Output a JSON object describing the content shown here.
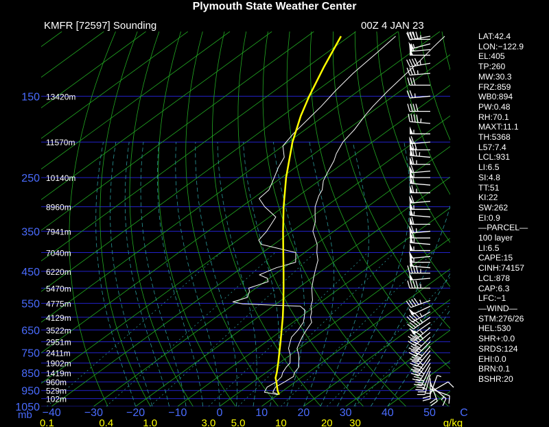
{
  "header": {
    "title": "Plymouth State Weather Center",
    "station": "KMFR [72597] Sounding",
    "datetime": "00Z  4 JAN 23"
  },
  "colors": {
    "background": "#000000",
    "isobar": "#2222cc",
    "isotherm": "#22aa22",
    "dry_adiabat": "#22aa22",
    "moist_adiabat": "#2a9a9a",
    "mixing_ratio": "#2a9a9a",
    "temperature": "#ffffff",
    "dewpoint": "#ffffff",
    "parcel": "#ffff00",
    "pressure_label": "#4a6cff",
    "text": "#ffffff"
  },
  "chart_data": {
    "type": "skew-t",
    "pressure_unit": "mb",
    "temperature_unit": "C",
    "mixing_ratio_unit": "g/kg",
    "pressure_labels": [
      {
        "p": 150,
        "label": "150",
        "height": "13420m"
      },
      {
        "p": 200,
        "label": "",
        "height": "11570m"
      },
      {
        "p": 250,
        "label": "250",
        "height": "10140m"
      },
      {
        "p": 300,
        "label": "",
        "height": "8960m"
      },
      {
        "p": 350,
        "label": "350",
        "height": "7941m"
      },
      {
        "p": 400,
        "label": "",
        "height": "7040m"
      },
      {
        "p": 450,
        "label": "450",
        "height": "6220m"
      },
      {
        "p": 500,
        "label": "",
        "height": "5470m"
      },
      {
        "p": 550,
        "label": "550",
        "height": "4775m"
      },
      {
        "p": 600,
        "label": "",
        "height": "4129m"
      },
      {
        "p": 650,
        "label": "650",
        "height": "3522m"
      },
      {
        "p": 700,
        "label": "",
        "height": "2951m"
      },
      {
        "p": 750,
        "label": "750",
        "height": "2411m"
      },
      {
        "p": 800,
        "label": "",
        "height": "1902m"
      },
      {
        "p": 850,
        "label": "850",
        "height": "1419m"
      },
      {
        "p": 900,
        "label": "",
        "height": "960m"
      },
      {
        "p": 950,
        "label": "950",
        "height": "529m"
      },
      {
        "p": 1000,
        "label": "",
        "height": "102m"
      },
      {
        "p": 1050,
        "label": "1050",
        "height": ""
      }
    ],
    "temperature_ticks": [
      -40,
      -30,
      -20,
      -10,
      0,
      10,
      20,
      30,
      40,
      50
    ],
    "mixing_ratio_ticks": [
      "0.1",
      "0.4",
      "1.0",
      "3.0",
      "5.0",
      "10",
      "20",
      "30"
    ],
    "pressure_range": [
      100,
      1050
    ],
    "temperature_profile": [
      {
        "p": 975,
        "t": 10.3
      },
      {
        "p": 960,
        "t": 8.0
      },
      {
        "p": 930,
        "t": 7.0
      },
      {
        "p": 900,
        "t": 7.5
      },
      {
        "p": 870,
        "t": 7.8
      },
      {
        "p": 850,
        "t": 6.8
      },
      {
        "p": 820,
        "t": 6.0
      },
      {
        "p": 800,
        "t": 4.7
      },
      {
        "p": 760,
        "t": 2.0
      },
      {
        "p": 730,
        "t": -0.5
      },
      {
        "p": 700,
        "t": -2.0
      },
      {
        "p": 680,
        "t": -3.0
      },
      {
        "p": 650,
        "t": -4.3
      },
      {
        "p": 620,
        "t": -5.5
      },
      {
        "p": 600,
        "t": -7.5
      },
      {
        "p": 580,
        "t": -9.0
      },
      {
        "p": 560,
        "t": -11.0
      },
      {
        "p": 540,
        "t": -12.5
      },
      {
        "p": 500,
        "t": -16.7
      },
      {
        "p": 470,
        "t": -19.5
      },
      {
        "p": 450,
        "t": -21.4
      },
      {
        "p": 420,
        "t": -24.3
      },
      {
        "p": 400,
        "t": -27.1
      },
      {
        "p": 380,
        "t": -29.7
      },
      {
        "p": 350,
        "t": -35.0
      },
      {
        "p": 330,
        "t": -37.5
      },
      {
        "p": 310,
        "t": -40.8
      },
      {
        "p": 300,
        "t": -42.5
      },
      {
        "p": 280,
        "t": -45.2
      },
      {
        "p": 270,
        "t": -46.3
      },
      {
        "p": 255,
        "t": -49.0
      },
      {
        "p": 240,
        "t": -51.0
      },
      {
        "p": 225,
        "t": -53.0
      },
      {
        "p": 215,
        "t": -54.8
      },
      {
        "p": 200,
        "t": -57.0
      },
      {
        "p": 185,
        "t": -58.3
      },
      {
        "p": 170,
        "t": -60.3
      },
      {
        "p": 160,
        "t": -61.5
      },
      {
        "p": 145,
        "t": -63.0
      },
      {
        "p": 130,
        "t": -64.3
      },
      {
        "p": 120,
        "t": -65.2
      },
      {
        "p": 110,
        "t": -66.5
      },
      {
        "p": 103,
        "t": -67.3
      }
    ],
    "dewpoint_profile": [
      {
        "p": 975,
        "t": 10.0
      },
      {
        "p": 960,
        "t": 6.0
      },
      {
        "p": 930,
        "t": 5.0
      },
      {
        "p": 900,
        "t": 5.5
      },
      {
        "p": 870,
        "t": 5.0
      },
      {
        "p": 850,
        "t": 4.0
      },
      {
        "p": 820,
        "t": 3.0
      },
      {
        "p": 800,
        "t": 2.6
      },
      {
        "p": 760,
        "t": 0.0
      },
      {
        "p": 730,
        "t": -2.5
      },
      {
        "p": 700,
        "t": -4.3
      },
      {
        "p": 680,
        "t": -5.5
      },
      {
        "p": 650,
        "t": -6.3
      },
      {
        "p": 620,
        "t": -7.5
      },
      {
        "p": 600,
        "t": -9.0
      },
      {
        "p": 575,
        "t": -11.0
      },
      {
        "p": 560,
        "t": -13.5
      },
      {
        "p": 552,
        "t": -28.0
      },
      {
        "p": 545,
        "t": -31.0
      },
      {
        "p": 530,
        "t": -29.0
      },
      {
        "p": 510,
        "t": -30.5
      },
      {
        "p": 500,
        "t": -31.7
      },
      {
        "p": 480,
        "t": -29.2
      },
      {
        "p": 470,
        "t": -30.5
      },
      {
        "p": 460,
        "t": -33.5
      },
      {
        "p": 440,
        "t": -31.8
      },
      {
        "p": 425,
        "t": -29.0
      },
      {
        "p": 400,
        "t": -32.1
      },
      {
        "p": 380,
        "t": -43.0
      },
      {
        "p": 370,
        "t": -45.0
      },
      {
        "p": 350,
        "t": -46.0
      },
      {
        "p": 320,
        "t": -48.5
      },
      {
        "p": 300,
        "t": -54.5
      },
      {
        "p": 285,
        "t": -58.5
      },
      {
        "p": 270,
        "t": -59.0
      },
      {
        "p": 255,
        "t": -61.0
      },
      {
        "p": 235,
        "t": -64.0
      },
      {
        "p": 220,
        "t": -66.0
      },
      {
        "p": 205,
        "t": -70.0
      },
      {
        "p": 190,
        "t": -71.5
      },
      {
        "p": 170,
        "t": -73.0
      },
      {
        "p": 160,
        "t": -73.8
      },
      {
        "p": 145,
        "t": -75.5
      },
      {
        "p": 130,
        "t": -77.0
      },
      {
        "p": 115,
        "t": -78.0
      },
      {
        "p": 103,
        "t": -79.0
      }
    ],
    "parcel_profile": [
      {
        "p": 975,
        "t": 10.3
      },
      {
        "p": 950,
        "t": 8.6
      },
      {
        "p": 900,
        "t": 5.5
      },
      {
        "p": 878,
        "t": 4.0
      },
      {
        "p": 850,
        "t": 2.6
      },
      {
        "p": 800,
        "t": -0.2
      },
      {
        "p": 750,
        "t": -3.3
      },
      {
        "p": 700,
        "t": -6.6
      },
      {
        "p": 650,
        "t": -10.2
      },
      {
        "p": 600,
        "t": -14.1
      },
      {
        "p": 550,
        "t": -18.5
      },
      {
        "p": 500,
        "t": -23.4
      },
      {
        "p": 450,
        "t": -28.9
      },
      {
        "p": 400,
        "t": -35.1
      },
      {
        "p": 350,
        "t": -42.1
      },
      {
        "p": 300,
        "t": -50.0
      },
      {
        "p": 250,
        "t": -58.9
      },
      {
        "p": 200,
        "t": -69.0
      },
      {
        "p": 170,
        "t": -75.5
      },
      {
        "p": 150,
        "t": -80.0
      },
      {
        "p": 125,
        "t": -86.0
      },
      {
        "p": 103,
        "t": -92.0
      }
    ],
    "wind_profile": [
      {
        "p": 103,
        "dir": 260,
        "spd": 30
      },
      {
        "p": 105,
        "dir": 270,
        "spd": 45
      },
      {
        "p": 108,
        "dir": 255,
        "spd": 55
      },
      {
        "p": 112,
        "dir": 265,
        "spd": 60
      },
      {
        "p": 116,
        "dir": 270,
        "spd": 50
      },
      {
        "p": 122,
        "dir": 260,
        "spd": 45
      },
      {
        "p": 130,
        "dir": 265,
        "spd": 35
      },
      {
        "p": 140,
        "dir": 270,
        "spd": 30
      },
      {
        "p": 150,
        "dir": 265,
        "spd": 25
      },
      {
        "p": 165,
        "dir": 270,
        "spd": 40
      },
      {
        "p": 178,
        "dir": 275,
        "spd": 45
      },
      {
        "p": 190,
        "dir": 270,
        "spd": 55
      },
      {
        "p": 200,
        "dir": 265,
        "spd": 60
      },
      {
        "p": 210,
        "dir": 270,
        "spd": 70
      },
      {
        "p": 220,
        "dir": 275,
        "spd": 75
      },
      {
        "p": 230,
        "dir": 270,
        "spd": 65
      },
      {
        "p": 240,
        "dir": 265,
        "spd": 60
      },
      {
        "p": 250,
        "dir": 270,
        "spd": 55
      },
      {
        "p": 262,
        "dir": 275,
        "spd": 60
      },
      {
        "p": 275,
        "dir": 270,
        "spd": 65
      },
      {
        "p": 290,
        "dir": 265,
        "spd": 60
      },
      {
        "p": 305,
        "dir": 270,
        "spd": 55
      },
      {
        "p": 320,
        "dir": 275,
        "spd": 55
      },
      {
        "p": 335,
        "dir": 270,
        "spd": 60
      },
      {
        "p": 350,
        "dir": 265,
        "spd": 65
      },
      {
        "p": 365,
        "dir": 270,
        "spd": 60
      },
      {
        "p": 380,
        "dir": 275,
        "spd": 55
      },
      {
        "p": 395,
        "dir": 270,
        "spd": 55
      },
      {
        "p": 410,
        "dir": 265,
        "spd": 50
      },
      {
        "p": 425,
        "dir": 270,
        "spd": 55
      },
      {
        "p": 440,
        "dir": 275,
        "spd": 50
      },
      {
        "p": 455,
        "dir": 270,
        "spd": 45
      },
      {
        "p": 470,
        "dir": 265,
        "spd": 50
      },
      {
        "p": 500,
        "dir": 270,
        "spd": 45
      },
      {
        "p": 540,
        "dir": 250,
        "spd": 45
      },
      {
        "p": 560,
        "dir": 245,
        "spd": 50
      },
      {
        "p": 580,
        "dir": 240,
        "spd": 45
      },
      {
        "p": 600,
        "dir": 235,
        "spd": 45
      },
      {
        "p": 620,
        "dir": 235,
        "spd": 50
      },
      {
        "p": 640,
        "dir": 230,
        "spd": 45
      },
      {
        "p": 660,
        "dir": 230,
        "spd": 45
      },
      {
        "p": 680,
        "dir": 225,
        "spd": 40
      },
      {
        "p": 700,
        "dir": 225,
        "spd": 40
      },
      {
        "p": 720,
        "dir": 220,
        "spd": 40
      },
      {
        "p": 740,
        "dir": 220,
        "spd": 40
      },
      {
        "p": 760,
        "dir": 215,
        "spd": 35
      },
      {
        "p": 780,
        "dir": 215,
        "spd": 35
      },
      {
        "p": 800,
        "dir": 210,
        "spd": 35
      },
      {
        "p": 820,
        "dir": 205,
        "spd": 30
      },
      {
        "p": 840,
        "dir": 200,
        "spd": 30
      },
      {
        "p": 860,
        "dir": 195,
        "spd": 25
      },
      {
        "p": 880,
        "dir": 180,
        "spd": 25
      },
      {
        "p": 900,
        "dir": 160,
        "spd": 20
      },
      {
        "p": 920,
        "dir": 130,
        "spd": 15
      },
      {
        "p": 940,
        "dir": 110,
        "spd": 10
      },
      {
        "p": 960,
        "dir": 60,
        "spd": 10
      },
      {
        "p": 975,
        "dir": 20,
        "spd": 5
      }
    ]
  },
  "stats": [
    "LAT:42.4",
    "LON:−122.9",
    "EL:405",
    "TP:260",
    "MW:30.3",
    "FRZ:859",
    "WB0:894",
    "PW:0.48",
    "RH:70.1",
    "MAXT:11.1",
    "TH:5368",
    "L57:7.4",
    "LCL:931",
    "LI:6.5",
    "SI:4.8",
    "TT:51",
    "KI:22",
    "SW:262",
    "EI:0.9",
    "—PARCEL—",
    "100 layer",
    "LI:6.5",
    "CAPE:15",
    "CINH:74157",
    "LCL:878",
    "CAP:6.3",
    "LFC:−1",
    "—WIND—",
    "STM:276/26",
    "HEL:530",
    "SHR+:0.0",
    "SRDS:124",
    "EHI:0.0",
    "BRN:0.1",
    "BSHR:20"
  ]
}
